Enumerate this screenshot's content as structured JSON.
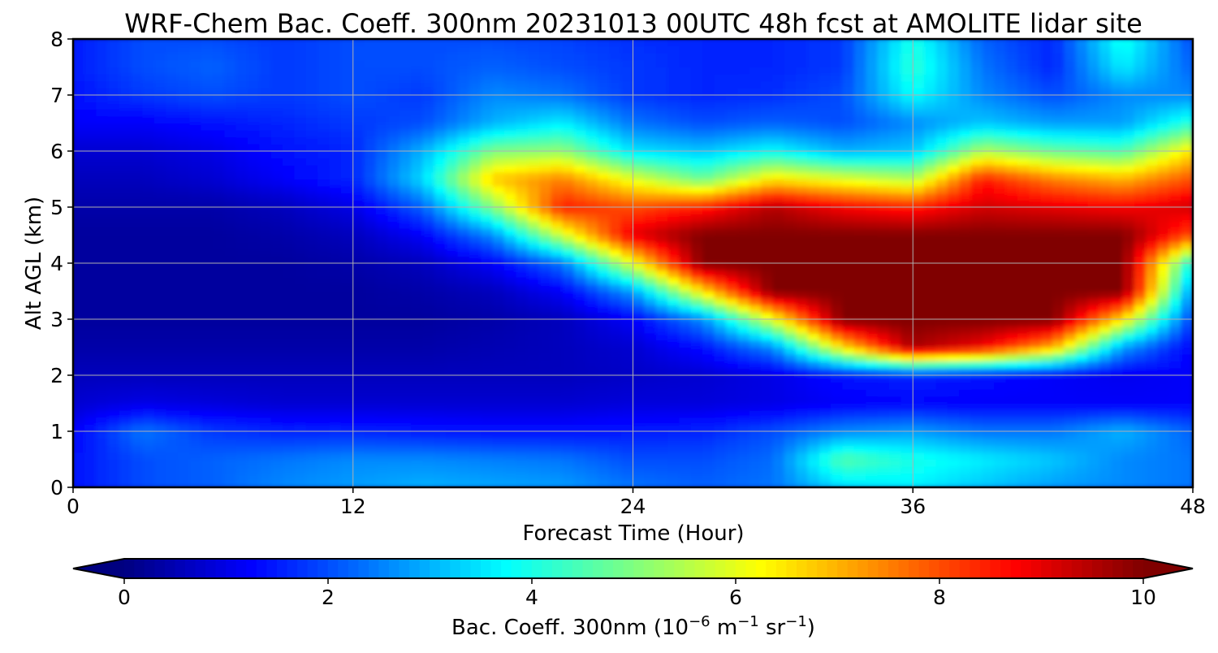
{
  "chart_data": {
    "type": "heatmap",
    "title": "WRF-Chem Bac. Coeff. 300nm  20231013 00UTC 48h fcst at AMOLITE lidar site",
    "xlabel": "Forecast Time (Hour)",
    "ylabel": "Alt AGL (km)",
    "xlim": [
      0,
      48
    ],
    "ylim": [
      0,
      8
    ],
    "x_ticks": [
      "0",
      "12",
      "24",
      "36",
      "48"
    ],
    "y_ticks": [
      "0",
      "1",
      "2",
      "3",
      "4",
      "5",
      "6",
      "7",
      "8"
    ],
    "grid": true,
    "colormap": "jet",
    "colorbar": {
      "orientation": "horizontal",
      "placement": "bottom",
      "extend": "both",
      "vmin": 0,
      "vmax": 10,
      "ticks": [
        "0",
        "2",
        "4",
        "6",
        "8",
        "10"
      ],
      "label_main": "Bac. Coeff. 300nm  (10",
      "label_exp1": "−6",
      "label_mid": " m",
      "label_exp2": "−1",
      "label_mid2": " sr",
      "label_exp3": "−1",
      "label_end": ")"
    },
    "x": [
      0,
      3,
      6,
      9,
      12,
      15,
      18,
      21,
      24,
      27,
      30,
      33,
      36,
      39,
      42,
      45,
      48
    ],
    "y": [
      0,
      0.5,
      1,
      1.5,
      2,
      2.5,
      3,
      3.5,
      4,
      4.5,
      5,
      5.5,
      6,
      6.5,
      7,
      7.5,
      8
    ],
    "values": [
      [
        1.4,
        2.0,
        2.2,
        2.6,
        2.8,
        3.0,
        2.9,
        2.8,
        2.4,
        2.2,
        2.4,
        3.4,
        3.6,
        3.2,
        2.8,
        2.6,
        2.4
      ],
      [
        1.4,
        2.0,
        2.2,
        2.4,
        2.6,
        2.6,
        2.5,
        2.4,
        2.0,
        2.0,
        2.3,
        4.6,
        4.0,
        3.6,
        3.2,
        2.6,
        2.4
      ],
      [
        1.2,
        2.4,
        1.8,
        1.6,
        1.6,
        1.5,
        1.4,
        1.4,
        1.5,
        1.6,
        2.0,
        2.6,
        2.8,
        2.4,
        2.4,
        3.0,
        2.2
      ],
      [
        0.8,
        1.0,
        0.9,
        0.8,
        0.8,
        0.8,
        0.8,
        0.8,
        0.9,
        0.9,
        1.0,
        1.2,
        1.3,
        1.2,
        1.2,
        1.2,
        1.2
      ],
      [
        0.6,
        0.6,
        0.6,
        0.6,
        0.6,
        0.6,
        0.6,
        0.6,
        0.7,
        0.8,
        1.0,
        1.4,
        1.6,
        1.4,
        1.2,
        1.1,
        1.2
      ],
      [
        0.4,
        0.4,
        0.4,
        0.4,
        0.4,
        0.4,
        0.5,
        0.6,
        0.8,
        1.4,
        2.6,
        6.5,
        9.6,
        8.8,
        7.0,
        2.8,
        1.2
      ],
      [
        0.3,
        0.3,
        0.3,
        0.3,
        0.3,
        0.3,
        0.4,
        0.6,
        1.2,
        2.6,
        6.0,
        10.0,
        10.0,
        10.0,
        10.0,
        6.5,
        1.8
      ],
      [
        0.3,
        0.3,
        0.3,
        0.3,
        0.3,
        0.4,
        0.6,
        1.2,
        2.8,
        6.5,
        10.0,
        10.0,
        10.0,
        10.0,
        10.0,
        10.0,
        2.6
      ],
      [
        0.3,
        0.3,
        0.3,
        0.3,
        0.4,
        0.6,
        1.2,
        2.4,
        6.0,
        10.0,
        10.0,
        10.0,
        10.0,
        10.0,
        10.0,
        10.0,
        3.8
      ],
      [
        0.3,
        0.3,
        0.3,
        0.4,
        0.6,
        1.2,
        2.6,
        5.8,
        9.0,
        10.0,
        10.0,
        10.0,
        10.0,
        10.0,
        10.0,
        10.0,
        8.0
      ],
      [
        0.4,
        0.4,
        0.4,
        0.6,
        1.0,
        2.2,
        5.0,
        8.5,
        8.0,
        8.5,
        9.5,
        8.8,
        8.5,
        9.2,
        9.0,
        8.8,
        9.2
      ],
      [
        0.6,
        0.6,
        0.8,
        1.2,
        1.6,
        3.4,
        6.8,
        7.5,
        6.0,
        4.8,
        6.5,
        6.0,
        5.5,
        8.5,
        7.5,
        7.0,
        8.0
      ],
      [
        0.8,
        0.8,
        1.0,
        1.4,
        1.6,
        3.0,
        5.0,
        5.2,
        3.5,
        3.2,
        3.8,
        3.0,
        3.2,
        5.5,
        4.8,
        4.5,
        6.5
      ],
      [
        1.2,
        1.2,
        1.4,
        1.6,
        1.8,
        2.0,
        3.0,
        3.6,
        2.4,
        2.0,
        2.2,
        2.0,
        2.6,
        3.2,
        2.8,
        2.8,
        4.2
      ],
      [
        1.4,
        1.8,
        2.0,
        1.8,
        2.0,
        1.8,
        2.6,
        2.4,
        1.8,
        1.6,
        1.7,
        2.0,
        3.8,
        2.6,
        2.0,
        2.6,
        2.6
      ],
      [
        1.5,
        2.0,
        2.2,
        1.8,
        2.0,
        2.0,
        2.2,
        2.0,
        1.8,
        1.6,
        1.6,
        1.8,
        4.2,
        2.4,
        1.6,
        3.6,
        2.2
      ],
      [
        1.5,
        2.0,
        2.0,
        1.8,
        2.0,
        2.0,
        2.0,
        1.9,
        1.7,
        1.6,
        1.6,
        1.8,
        4.0,
        2.2,
        1.6,
        4.0,
        2.0
      ]
    ]
  }
}
